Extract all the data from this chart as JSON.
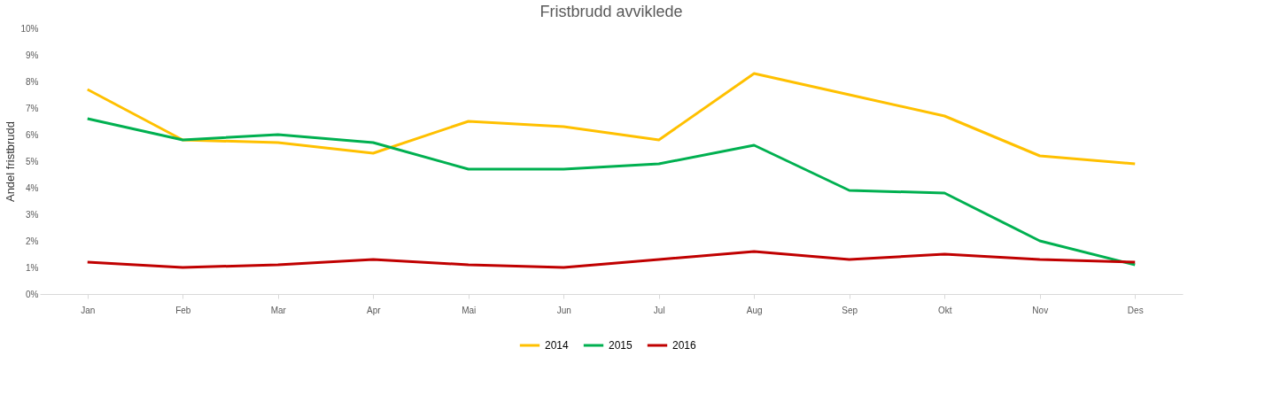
{
  "chart_data": {
    "type": "line",
    "title": "Fristbrudd avviklede",
    "ylabel": "Andel fristbrudd",
    "categories": [
      "Jan",
      "Feb",
      "Mar",
      "Apr",
      "Mai",
      "Jun",
      "Jul",
      "Aug",
      "Sep",
      "Okt",
      "Nov",
      "Des"
    ],
    "series": [
      {
        "name": "2014",
        "color": "#ffc000",
        "values": [
          7.7,
          5.8,
          5.7,
          5.3,
          6.5,
          6.3,
          5.8,
          8.3,
          7.5,
          6.7,
          5.2,
          4.9
        ]
      },
      {
        "name": "2015",
        "color": "#00b050",
        "values": [
          6.6,
          5.8,
          6.0,
          5.7,
          4.7,
          4.7,
          4.9,
          5.6,
          3.9,
          3.8,
          2.0,
          1.1
        ]
      },
      {
        "name": "2016",
        "color": "#c00000",
        "values": [
          1.2,
          1.0,
          1.1,
          1.3,
          1.1,
          1.0,
          1.3,
          1.6,
          1.3,
          1.5,
          1.3,
          1.2
        ]
      }
    ],
    "ylim": [
      0,
      10
    ],
    "yticks": [
      {
        "value": 0,
        "label": "0%"
      },
      {
        "value": 1,
        "label": "1%"
      },
      {
        "value": 2,
        "label": "2%"
      },
      {
        "value": 3,
        "label": "3%"
      },
      {
        "value": 4,
        "label": "4%"
      },
      {
        "value": 5,
        "label": "5%"
      },
      {
        "value": 6,
        "label": "6%"
      },
      {
        "value": 7,
        "label": "7%"
      },
      {
        "value": 8,
        "label": "8%"
      },
      {
        "value": 9,
        "label": "9%"
      },
      {
        "value": 10,
        "label": "10%"
      }
    ],
    "grid": false,
    "legend": "bottom",
    "marker": "none",
    "line_style": "solid"
  }
}
